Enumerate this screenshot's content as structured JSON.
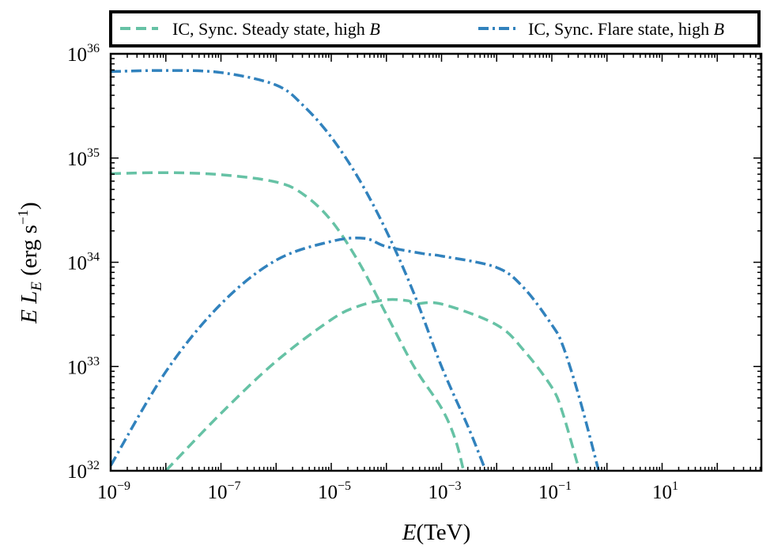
{
  "chart_data": {
    "type": "line",
    "title": "",
    "xlabel": "E(TeV)",
    "ylabel": "E L_E (erg s^-1)",
    "xscale": "log",
    "yscale": "log",
    "xlim_log10": [
      -9,
      2.8
    ],
    "ylim_log10": [
      32,
      36
    ],
    "xtick_exponents": [
      "-9",
      "-7",
      "-5",
      "-3",
      "-1",
      "1"
    ],
    "ytick_exponents": [
      "32",
      "33",
      "34",
      "35",
      "36"
    ],
    "tick_base": "10",
    "legend": {
      "placement": "top, outside plot",
      "entries": [
        {
          "label": "IC, Sync. Steady state, high ",
          "label_italic": "B",
          "series": "steady"
        },
        {
          "label": "IC, Sync. Flare state, high ",
          "label_italic": "B",
          "series": "flare"
        }
      ]
    },
    "series": [
      {
        "name": "Sync. Steady state, high B",
        "group": "steady",
        "color": "#66c2a5",
        "dash": "dashed",
        "points_log10": [
          [
            -9,
            34.85
          ],
          [
            -8,
            34.86
          ],
          [
            -7,
            34.84
          ],
          [
            -6,
            34.77
          ],
          [
            -5.5,
            34.65
          ],
          [
            -5,
            34.4
          ],
          [
            -4.5,
            34.0
          ],
          [
            -4,
            33.5
          ],
          [
            -3.5,
            33.0
          ],
          [
            -3,
            32.6
          ],
          [
            -2.75,
            32.3
          ],
          [
            -2.6,
            32.0
          ]
        ]
      },
      {
        "name": "IC Steady state, high B",
        "group": "steady",
        "color": "#66c2a5",
        "dash": "dashed",
        "points_log10": [
          [
            -8.0,
            32.0
          ],
          [
            -7,
            32.55
          ],
          [
            -6,
            33.05
          ],
          [
            -5,
            33.45
          ],
          [
            -4.5,
            33.58
          ],
          [
            -4,
            33.64
          ],
          [
            -3.6,
            33.63
          ],
          [
            -3.5,
            33.6
          ],
          [
            -3,
            33.6
          ],
          [
            -2,
            33.4
          ],
          [
            -1.5,
            33.15
          ],
          [
            -1,
            32.8
          ],
          [
            -0.8,
            32.55
          ],
          [
            -0.5,
            32.0
          ]
        ]
      },
      {
        "name": "Sync. Flare state, high B",
        "group": "flare",
        "color": "#3182bd",
        "dash": "dashdot",
        "points_log10": [
          [
            -9,
            35.83
          ],
          [
            -8,
            35.84
          ],
          [
            -7,
            35.82
          ],
          [
            -6,
            35.7
          ],
          [
            -5.5,
            35.5
          ],
          [
            -5,
            35.2
          ],
          [
            -4.5,
            34.8
          ],
          [
            -4,
            34.3
          ],
          [
            -3.5,
            33.7
          ],
          [
            -3,
            33.0
          ],
          [
            -2.5,
            32.4
          ],
          [
            -2.2,
            32.0
          ]
        ]
      },
      {
        "name": "IC Flare state, high B",
        "group": "flare",
        "color": "#3182bd",
        "dash": "dashdot",
        "points_log10": [
          [
            -9,
            32.05
          ],
          [
            -8,
            32.95
          ],
          [
            -7,
            33.6
          ],
          [
            -6,
            34.02
          ],
          [
            -5,
            34.2
          ],
          [
            -4.4,
            34.23
          ],
          [
            -4,
            34.15
          ],
          [
            -3.3,
            34.08
          ],
          [
            -3,
            34.06
          ],
          [
            -2,
            33.95
          ],
          [
            -1.5,
            33.75
          ],
          [
            -1,
            33.4
          ],
          [
            -0.8,
            33.2
          ],
          [
            -0.5,
            32.7
          ],
          [
            -0.15,
            32.0
          ]
        ]
      }
    ]
  }
}
